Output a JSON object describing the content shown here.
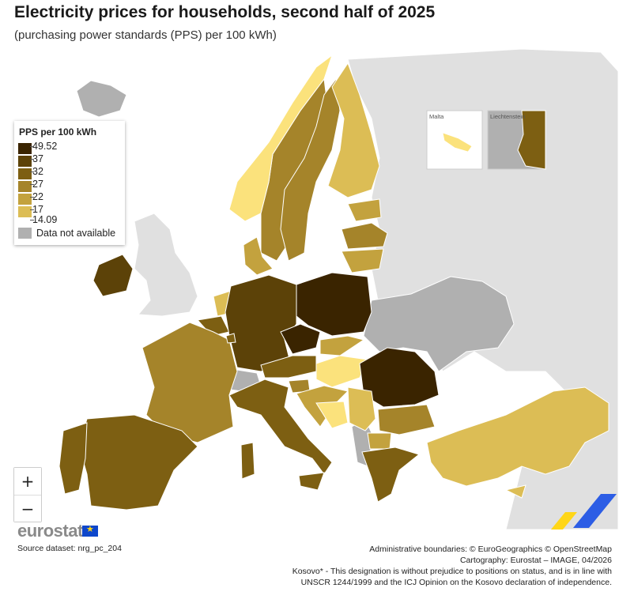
{
  "title": "Electricity prices for households, second half of 2025",
  "subtitle": "(purchasing power standards (PPS) per 100 kWh)",
  "legend": {
    "title": "PPS per 100 kWh",
    "ticks": [
      "49.52",
      "37",
      "32",
      "27",
      "22",
      "17",
      "14.09"
    ],
    "classes": [
      "#3a2400",
      "#5c4208",
      "#7d5f12",
      "#a5842a",
      "#c3a23e",
      "#dcbd55",
      "#fbe27c"
    ],
    "not_available_label": "Data not available",
    "not_available_color": "#b0b0b0"
  },
  "insets": {
    "malta": "Malta",
    "liechtenstein": "Liechtenstein"
  },
  "zoom": {
    "in_label": "+",
    "out_label": "−"
  },
  "logo": "eurostat",
  "source": "Source dataset: nrg_pc_204",
  "credits": [
    "Administrative boundaries: © EuroGeographics © OpenStreetMap",
    "Cartography: Eurostat – IMAGE, 04/2026",
    "Kosovo* - This designation is without prejudice to positions on status, and is in line with",
    "UNSCR 1244/1999 and the ICJ Opinion on the Kosovo declaration of independence."
  ],
  "colors": {
    "non_eu": "#e0e0e0",
    "sea": "#ffffff",
    "border": "#ffffff"
  }
}
